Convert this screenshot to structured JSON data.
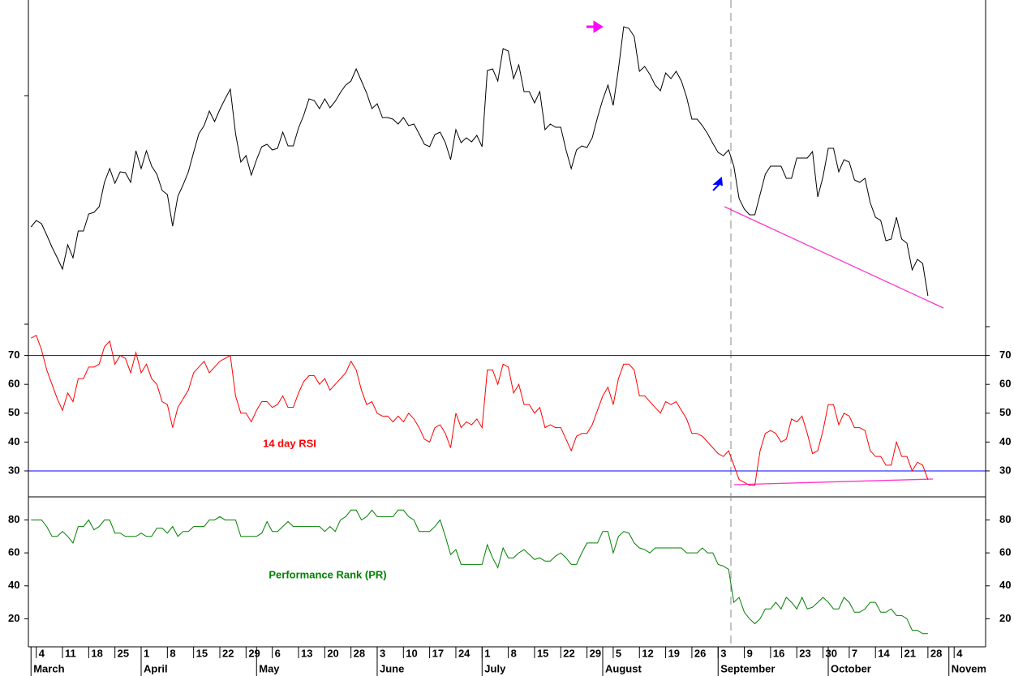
{
  "chart_data": [
    {
      "type": "line",
      "xlim": [
        -0.5,
        182
      ],
      "ylim": [
        -3,
        400
      ],
      "series": [
        {
          "color": "#000000",
          "values": [
            120,
            128,
            124,
            110,
            95,
            82,
            68,
            98,
            82,
            115,
            115,
            136,
            138,
            145,
            175,
            192,
            174,
            188,
            187,
            175,
            214,
            192,
            214,
            195,
            185,
            165,
            160,
            121,
            158,
            172,
            188,
            212,
            235,
            245,
            263,
            250,
            265,
            278,
            290,
            235,
            200,
            208,
            184,
            203,
            219,
            222,
            215,
            217,
            237,
            220,
            220,
            242,
            258,
            278,
            276,
            266,
            278,
            267,
            275,
            286,
            295,
            300,
            315,
            300,
            285,
            266,
            272,
            255,
            255,
            253,
            247,
            255,
            245,
            247,
            235,
            222,
            219,
            234,
            237,
            224,
            203,
            240,
            224,
            230,
            225,
            233,
            219,
            313,
            315,
            300,
            340,
            337,
            303,
            320,
            287,
            287,
            273,
            287,
            240,
            247,
            243,
            243,
            215,
            192,
            215,
            220,
            218,
            230,
            255,
            277,
            295,
            270,
            315,
            367,
            365,
            355,
            312,
            318,
            308,
            295,
            288,
            310,
            303,
            312,
            300,
            280,
            253,
            253,
            245,
            235,
            223,
            212,
            208,
            215,
            195,
            155,
            142,
            135,
            135,
            160,
            185,
            195,
            195,
            195,
            180,
            180,
            205,
            205,
            205,
            213,
            157,
            182,
            217,
            217,
            188,
            203,
            200,
            178,
            175,
            180,
            150,
            132,
            128,
            103,
            105,
            132,
            105,
            100,
            67,
            80,
            75,
            35
          ]
        }
      ]
    },
    {
      "type": "line",
      "xlim": [
        -0.5,
        182
      ],
      "ylim": [
        21,
        80
      ],
      "yticks": [
        30,
        40,
        50,
        60,
        70
      ],
      "ref_lines": [
        70,
        30
      ],
      "ref_color": "#0000ff",
      "series": [
        {
          "name": "14 day RSI",
          "color": "#ff0000",
          "values": [
            76,
            77,
            72,
            65,
            60,
            55,
            51,
            57,
            54,
            62,
            62,
            66,
            66,
            67,
            73,
            75,
            67,
            70,
            69,
            64,
            71,
            64,
            67,
            62,
            60,
            54,
            53,
            45,
            52,
            55,
            58,
            64,
            66,
            68,
            64,
            66,
            68,
            69,
            70,
            56,
            50,
            50,
            47,
            51,
            54,
            54,
            52,
            53,
            56,
            52,
            52,
            57,
            61,
            63,
            63,
            60,
            62,
            58,
            60,
            62,
            64,
            68,
            65,
            58,
            53,
            54,
            50,
            49,
            49,
            47,
            49,
            47,
            50,
            48,
            45,
            41,
            40,
            45,
            46,
            43,
            38,
            50,
            45,
            47,
            46,
            48,
            45,
            65,
            65,
            60,
            67,
            66,
            57,
            60,
            53,
            53,
            50,
            52,
            45,
            46,
            45,
            45,
            41,
            37,
            42,
            43,
            43,
            46,
            51,
            56,
            59,
            53,
            62,
            67,
            67,
            65,
            56,
            56,
            54,
            52,
            50,
            54,
            53,
            54,
            51,
            48,
            43,
            43,
            42,
            40,
            38,
            36,
            35,
            37,
            32,
            27,
            26,
            25,
            25,
            37,
            43,
            44,
            43,
            40,
            41,
            48,
            47,
            49,
            43,
            36,
            37,
            44,
            53,
            53,
            46,
            50,
            49,
            45,
            45,
            44,
            37,
            35,
            35,
            32,
            32,
            40,
            35,
            35,
            30,
            33,
            32,
            27
          ]
        }
      ]
    },
    {
      "type": "line",
      "xlim": [
        -0.5,
        182
      ],
      "ylim": [
        3,
        94
      ],
      "yticks": [
        20,
        40,
        60,
        80
      ],
      "series": [
        {
          "name": "Performance Rank (PR)",
          "color": "#008000",
          "values": [
            80,
            80,
            80,
            76,
            70,
            70,
            73,
            70,
            66,
            76,
            76,
            80,
            74,
            76,
            80,
            80,
            72,
            72,
            70,
            70,
            70,
            72,
            70,
            70,
            75,
            75,
            72,
            76,
            70,
            73,
            73,
            76,
            76,
            76,
            80,
            80,
            82,
            80,
            80,
            80,
            70,
            70,
            70,
            70,
            72,
            79,
            73,
            73,
            76,
            79,
            76,
            76,
            76,
            76,
            76,
            76,
            73,
            76,
            73,
            80,
            82,
            86,
            86,
            80,
            82,
            86,
            82,
            82,
            82,
            82,
            86,
            86,
            82,
            80,
            73,
            73,
            73,
            76,
            80,
            70,
            59,
            62,
            53,
            53,
            53,
            53,
            53,
            65,
            57,
            51,
            63,
            57,
            57,
            60,
            62,
            59,
            56,
            57,
            55,
            55,
            58,
            60,
            57,
            53,
            53,
            60,
            66,
            66,
            66,
            73,
            73,
            60,
            70,
            73,
            72,
            66,
            63,
            62,
            60,
            63,
            63,
            63,
            63,
            63,
            63,
            60,
            60,
            60,
            63,
            60,
            60,
            53,
            52,
            50,
            30,
            33,
            24,
            20,
            17,
            20,
            26,
            26,
            30,
            26,
            33,
            30,
            26,
            33,
            26,
            27,
            30,
            33,
            30,
            26,
            26,
            33,
            30,
            24,
            24,
            26,
            30,
            30,
            24,
            24,
            26,
            22,
            22,
            20,
            13,
            13,
            11,
            11
          ]
        }
      ],
      "xticks": [
        {
          "value": 1,
          "label": "4"
        },
        {
          "value": 6,
          "label": "11"
        },
        {
          "value": 11,
          "label": "18"
        },
        {
          "value": 16,
          "label": "25"
        },
        {
          "value": 21,
          "label": "1"
        },
        {
          "value": 26,
          "label": "8"
        },
        {
          "value": 31,
          "label": "15"
        },
        {
          "value": 36,
          "label": "22"
        },
        {
          "value": 41,
          "label": "29"
        },
        {
          "value": 46,
          "label": "6"
        },
        {
          "value": 51,
          "label": "13"
        },
        {
          "value": 56,
          "label": "20"
        },
        {
          "value": 61,
          "label": "28"
        },
        {
          "value": 66,
          "label": "3"
        },
        {
          "value": 71,
          "label": "10"
        },
        {
          "value": 76,
          "label": "17"
        },
        {
          "value": 81,
          "label": "24"
        },
        {
          "value": 86,
          "label": "1"
        },
        {
          "value": 91,
          "label": "8"
        },
        {
          "value": 96,
          "label": "15"
        },
        {
          "value": 101,
          "label": "22"
        },
        {
          "value": 106,
          "label": "29"
        },
        {
          "value": 111,
          "label": "5"
        },
        {
          "value": 116,
          "label": "12"
        },
        {
          "value": 121,
          "label": "19"
        },
        {
          "value": 126,
          "label": "26"
        },
        {
          "value": 131,
          "label": "3"
        },
        {
          "value": 136,
          "label": "9"
        },
        {
          "value": 141,
          "label": "16"
        },
        {
          "value": 146,
          "label": "23"
        },
        {
          "value": 151,
          "label": "30"
        },
        {
          "value": 156,
          "label": "7"
        },
        {
          "value": 161,
          "label": "14"
        },
        {
          "value": 166,
          "label": "21"
        },
        {
          "value": 171,
          "label": "28"
        },
        {
          "value": 176,
          "label": "4"
        }
      ],
      "month_ticks": [
        {
          "value": 0,
          "label": "March"
        },
        {
          "value": 21,
          "label": "April"
        },
        {
          "value": 43,
          "label": "May"
        },
        {
          "value": 66,
          "label": "June"
        },
        {
          "value": 86,
          "label": "July"
        },
        {
          "value": 109,
          "label": "August"
        },
        {
          "value": 131,
          "label": "September"
        },
        {
          "value": 152,
          "label": "October"
        },
        {
          "value": 175,
          "label": "November"
        }
      ]
    }
  ]
}
